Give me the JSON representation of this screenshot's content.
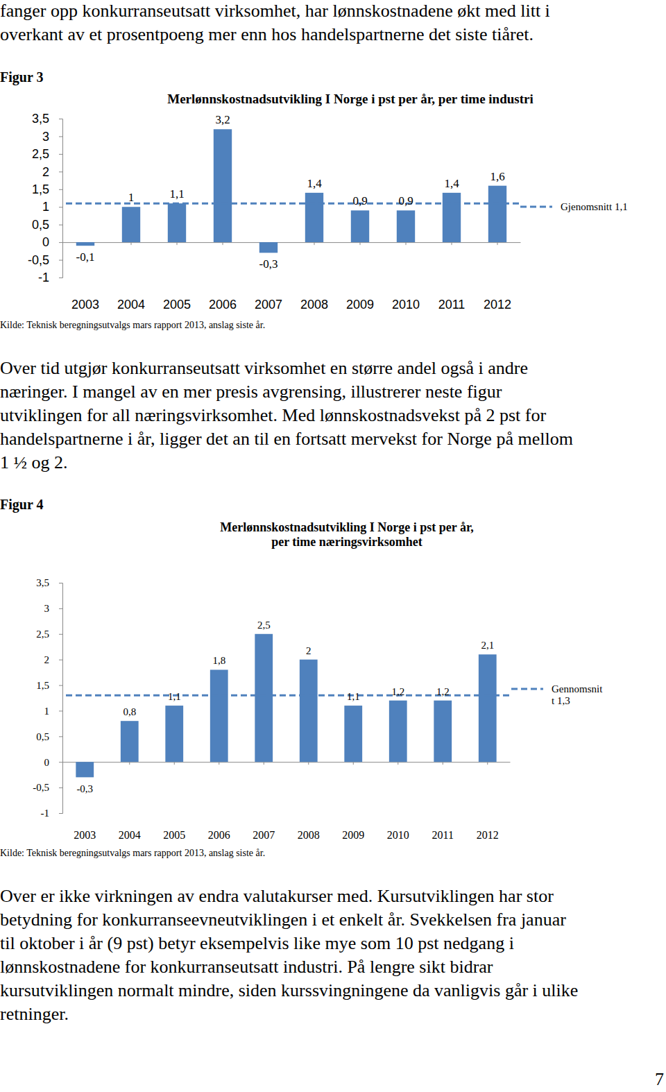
{
  "intro_lines": [
    "fanger opp konkurranseutsatt virksomhet, har lønnskostnadene økt med litt i",
    "overkant av et prosentpoeng mer enn hos handelspartnerne det siste tiåret."
  ],
  "paragraph_1": [
    "Over tid utgjør konkurranseutsatt virksomhet en større andel også i andre",
    "næringer. I mangel av en mer presis avgrensing, illustrerer neste figur",
    "utviklingen for all næringsvirksomhet. Med lønnskostnadsvekst på 2 pst for",
    "handelspartnerne i år, ligger det an til en fortsatt mervekst for Norge på mellom",
    "1 ½ og 2."
  ],
  "paragraph_2": [
    "Over er ikke virkningen av endra valutakurser med. Kursutviklingen har stor",
    "betydning for konkurranseevneutviklingen i et enkelt år. Svekkelsen fra januar",
    "til oktober i år (9 pst) betyr eksempelvis like mye som 10 pst nedgang i",
    "lønnskostnadene for konkurranseutsatt industri. På lengre sikt bidrar",
    "kursutviklingen normalt mindre, siden kurssvingningene da vanligvis går i ulike",
    "retninger."
  ],
  "page_number": "7",
  "chart_data": [
    {
      "type": "bar",
      "figure_label": "Figur 3",
      "title": "Merlønnskostnadsutvikling  I Norge i pst per år,  per time industri",
      "categories": [
        "2003",
        "2004",
        "2005",
        "2006",
        "2007",
        "2008",
        "2009",
        "2010",
        "2011",
        "2012"
      ],
      "values": [
        -0.1,
        1,
        1.1,
        3.2,
        -0.3,
        1.4,
        0.9,
        0.9,
        1.4,
        1.6
      ],
      "value_labels": [
        "-0,1",
        "1",
        "1,1",
        "3,2",
        "-0,3",
        "1,4",
        "0,9",
        "0,9",
        "1,4",
        "1,6"
      ],
      "data_labels": true,
      "color": "#4f81bd",
      "ylim": [
        -1,
        3.5
      ],
      "yticks": [
        -1,
        {
          "value": -0.5,
          "label": "-0,5"
        },
        0,
        {
          "value": 0.5,
          "label": "0,5"
        },
        1,
        {
          "value": 1.5,
          "label": "1,5"
        },
        2,
        {
          "value": 2.5,
          "label": "2,5"
        },
        3,
        {
          "value": 3.5,
          "label": "3,5"
        }
      ],
      "average": {
        "name": "Gjenomsnitt 1,1",
        "value": 1.1,
        "line_style": "dashed"
      },
      "source": "Kilde: Teknisk beregningsutvalgs mars rapport 2013, anslag siste år."
    },
    {
      "type": "bar",
      "figure_label": "Figur 4",
      "title": [
        "Merlønnskostnadsutvikling  I Norge i pst per år,",
        "per time næringsvirksomhet"
      ],
      "categories": [
        "2003",
        "2004",
        "2005",
        "2006",
        "2007",
        "2008",
        "2009",
        "2010",
        "2011",
        "2012"
      ],
      "values": [
        -0.3,
        0.8,
        1.1,
        1.8,
        2.5,
        2,
        1.1,
        1.2,
        1.2,
        2.1
      ],
      "value_labels": [
        "-0,3",
        "0,8",
        "1,1",
        "1,8",
        "2,5",
        "2",
        "1,1",
        "1,2",
        "1,2",
        "2,1"
      ],
      "data_labels": true,
      "color": "#4f81bd",
      "ylim": [
        -1,
        3.5
      ],
      "yticks": [
        -1,
        {
          "value": -0.5,
          "label": "-0,5"
        },
        0,
        {
          "value": 0.5,
          "label": "0,5"
        },
        1,
        {
          "value": 1.5,
          "label": "1,5"
        },
        2,
        {
          "value": 2.5,
          "label": "2,5"
        },
        3,
        {
          "value": 3.5,
          "label": "3,5"
        }
      ],
      "average": {
        "name": [
          "Gennomsnit",
          "t 1,3"
        ],
        "value": 1.3,
        "line_style": "dashed"
      },
      "source": "Kilde: Teknisk beregningsutvalgs mars rapport 2013, anslag siste år."
    }
  ]
}
